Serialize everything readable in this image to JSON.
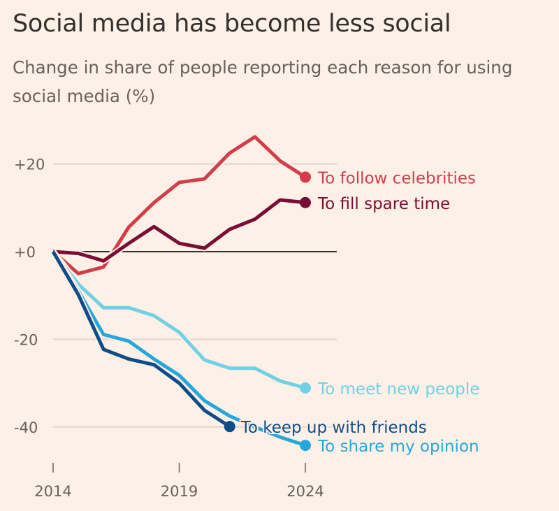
{
  "chart_data": {
    "type": "line",
    "title": "Social media has become less social",
    "subtitle": "Change in share of people reporting each reason for using social media (%)",
    "xlabel": "",
    "ylabel": "",
    "x": [
      2014,
      2015,
      2016,
      2017,
      2018,
      2019,
      2020,
      2021,
      2022,
      2023,
      2024
    ],
    "xticks": [
      2014,
      2019,
      2024
    ],
    "xtick_labels": [
      "2014",
      "2019",
      "2024"
    ],
    "yticks": [
      20,
      0,
      -20,
      -40
    ],
    "ytick_labels": [
      "+20",
      "+0",
      "-20",
      "-40"
    ],
    "ylim": [
      -48,
      28
    ],
    "grid": true,
    "legend": "direct labels at line ends",
    "series": [
      {
        "name": "To follow celebrities",
        "color": "#d33d4a",
        "values": [
          0,
          -5,
          -3.5,
          5.6,
          11.2,
          15.8,
          16.6,
          22.5,
          26.2,
          20.7,
          17
        ]
      },
      {
        "name": "To fill spare time",
        "color": "#7a0d33",
        "values": [
          0,
          -0.4,
          -2.1,
          1.9,
          5.7,
          1.9,
          0.8,
          5.1,
          7.4,
          11.8,
          11.2
        ]
      },
      {
        "name": "To meet new people",
        "color": "#72d0e4",
        "values": [
          0,
          -7.4,
          -12.8,
          -12.8,
          -14.6,
          -18.4,
          -24.7,
          -26.6,
          -26.6,
          -29.5,
          -31.1
        ]
      },
      {
        "name": "To share my opinion",
        "color": "#26a7dc",
        "values": [
          0,
          -9,
          -18.9,
          -20.4,
          -24.5,
          -28.2,
          -34,
          -37.5,
          -40,
          -42.3,
          -44.2
        ]
      },
      {
        "name": "To keep up with friends",
        "color": "#0f4c88",
        "values": [
          0,
          -9.8,
          -22.3,
          -24.5,
          -25.8,
          -30,
          -36.2,
          -39.9,
          null,
          null,
          null
        ]
      }
    ]
  }
}
